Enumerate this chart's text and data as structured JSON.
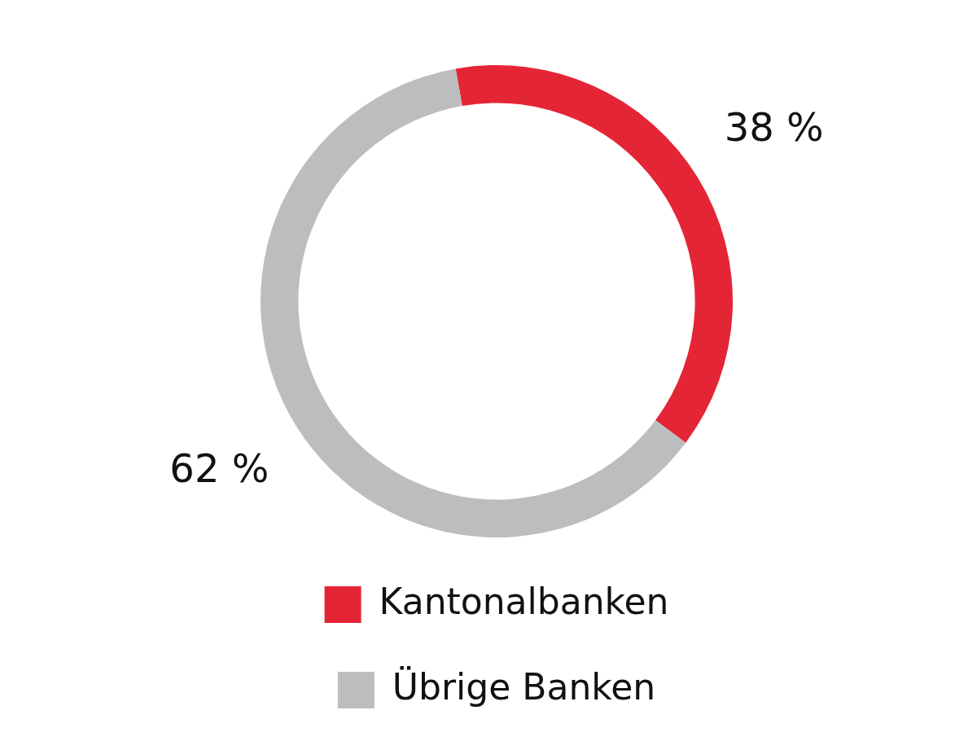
{
  "chart_data": {
    "type": "donut",
    "categories": [
      "Kantonalbanken",
      "Übrige Banken"
    ],
    "values": [
      38,
      62
    ],
    "colors": [
      "#e42535",
      "#bcbdbf"
    ],
    "value_labels": [
      "38 %",
      "62 %"
    ],
    "legend": "bottom"
  }
}
